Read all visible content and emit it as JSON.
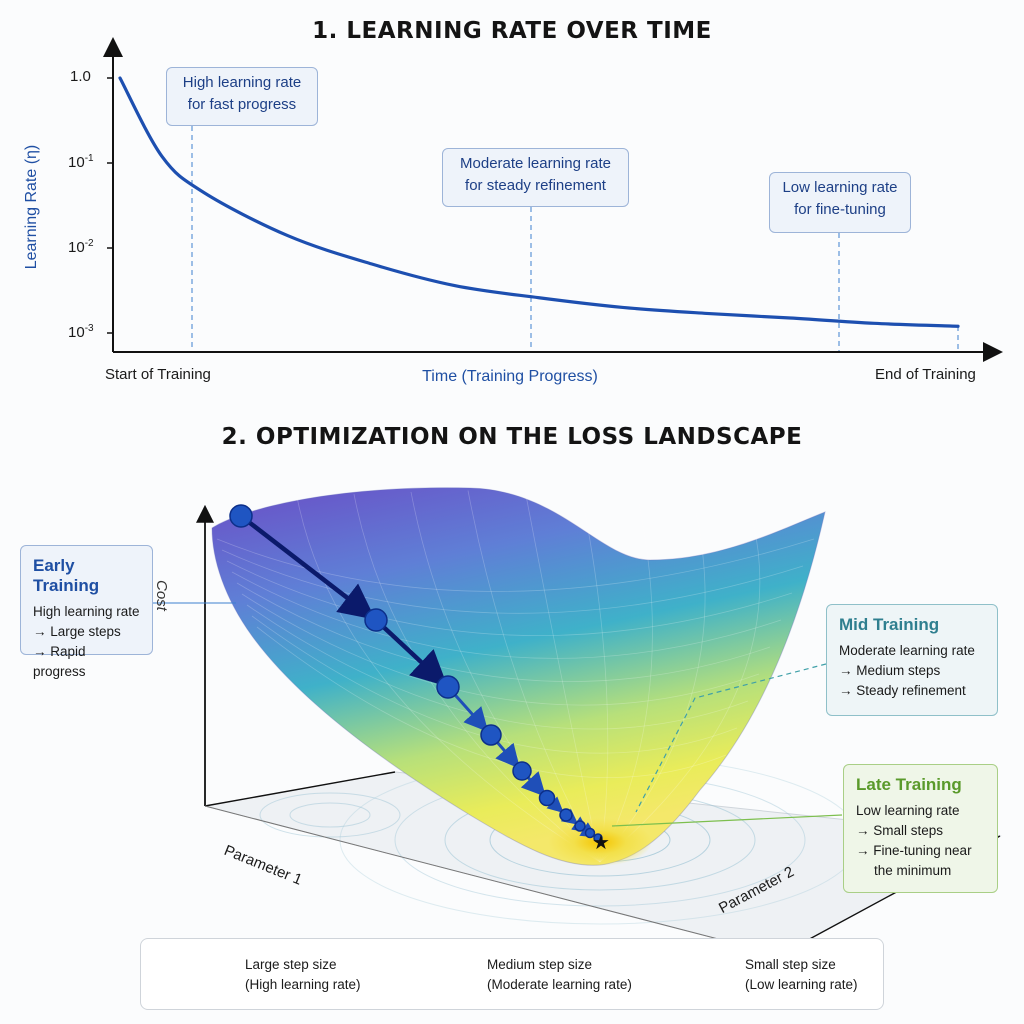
{
  "section1": {
    "title": "1. LEARNING RATE OVER TIME",
    "y_axis_title": "Learning Rate (η)",
    "x_axis_title": "Time (Training Progress)",
    "x_start_label": "Start of Training",
    "x_end_label": "End of Training",
    "y_ticks": [
      {
        "base": "1.0",
        "exp": ""
      },
      {
        "base": "10",
        "exp": "-1"
      },
      {
        "base": "10",
        "exp": "-2"
      },
      {
        "base": "10",
        "exp": "-3"
      }
    ],
    "phases": [
      {
        "line1": "High learning rate",
        "line2": "for fast progress"
      },
      {
        "line1": "Moderate learning rate",
        "line2": "for steady refinement"
      },
      {
        "line1": "Low learning rate",
        "line2": "for fine-tuning"
      }
    ],
    "colors": {
      "curve": "#1d4fb0",
      "axis": "#111111",
      "guide": "#3d7fd0"
    }
  },
  "chart_data": {
    "type": "line",
    "title": "1. LEARNING RATE OVER TIME",
    "xlabel": "Time (Training Progress)",
    "ylabel": "Learning Rate (η)",
    "y_scale": "log",
    "ylim": [
      0.001,
      1.0
    ],
    "x_tick_labels": [
      "Start of Training",
      "End of Training"
    ],
    "y_tick_labels": [
      "1.0",
      "10^-1",
      "10^-2",
      "10^-3"
    ],
    "x": [
      0,
      0.05,
      0.1,
      0.2,
      0.3,
      0.4,
      0.5,
      0.6,
      0.7,
      0.8,
      0.9,
      1.0
    ],
    "series": [
      {
        "values": [
          1.0,
          0.12,
          0.045,
          0.014,
          0.0065,
          0.0036,
          0.0026,
          0.002,
          0.0017,
          0.0015,
          0.0013,
          0.0012
        ]
      }
    ],
    "grid": false
  },
  "section2": {
    "title": "2. OPTIMIZATION ON THE LOSS LANDSCAPE",
    "cost_label": "Cost",
    "param1_label": "Parameter 1",
    "param2_label": "Parameter 2",
    "callouts": {
      "early": {
        "title": "Early Training",
        "lines": [
          "High learning rate",
          "→ Large steps",
          "→ Rapid progress"
        ]
      },
      "mid": {
        "title": "Mid Training",
        "lines": [
          "Moderate learning rate",
          "→ Medium steps",
          "→ Steady refinement"
        ]
      },
      "late": {
        "title": "Late Training",
        "lines": [
          "Low learning rate",
          "→ Small steps",
          "→ Fine-tuning near",
          "the minimum"
        ]
      }
    },
    "minimum_marker": "★",
    "colors": {
      "surface_top": "#6b4fc8",
      "surface_mid": "#3fa5c9",
      "surface_low": "#d9e84a",
      "minimum": "#f2d21a",
      "path": "#0b1a6b",
      "dots": "#1f55c2"
    }
  },
  "legend": {
    "large": {
      "line1": "Large step size",
      "line2": "(High learning rate)"
    },
    "medium": {
      "line1": "Medium step size",
      "line2": "(Moderate learning rate)"
    },
    "small": {
      "line1": "Small step size",
      "line2": "(Low learning rate)"
    }
  }
}
